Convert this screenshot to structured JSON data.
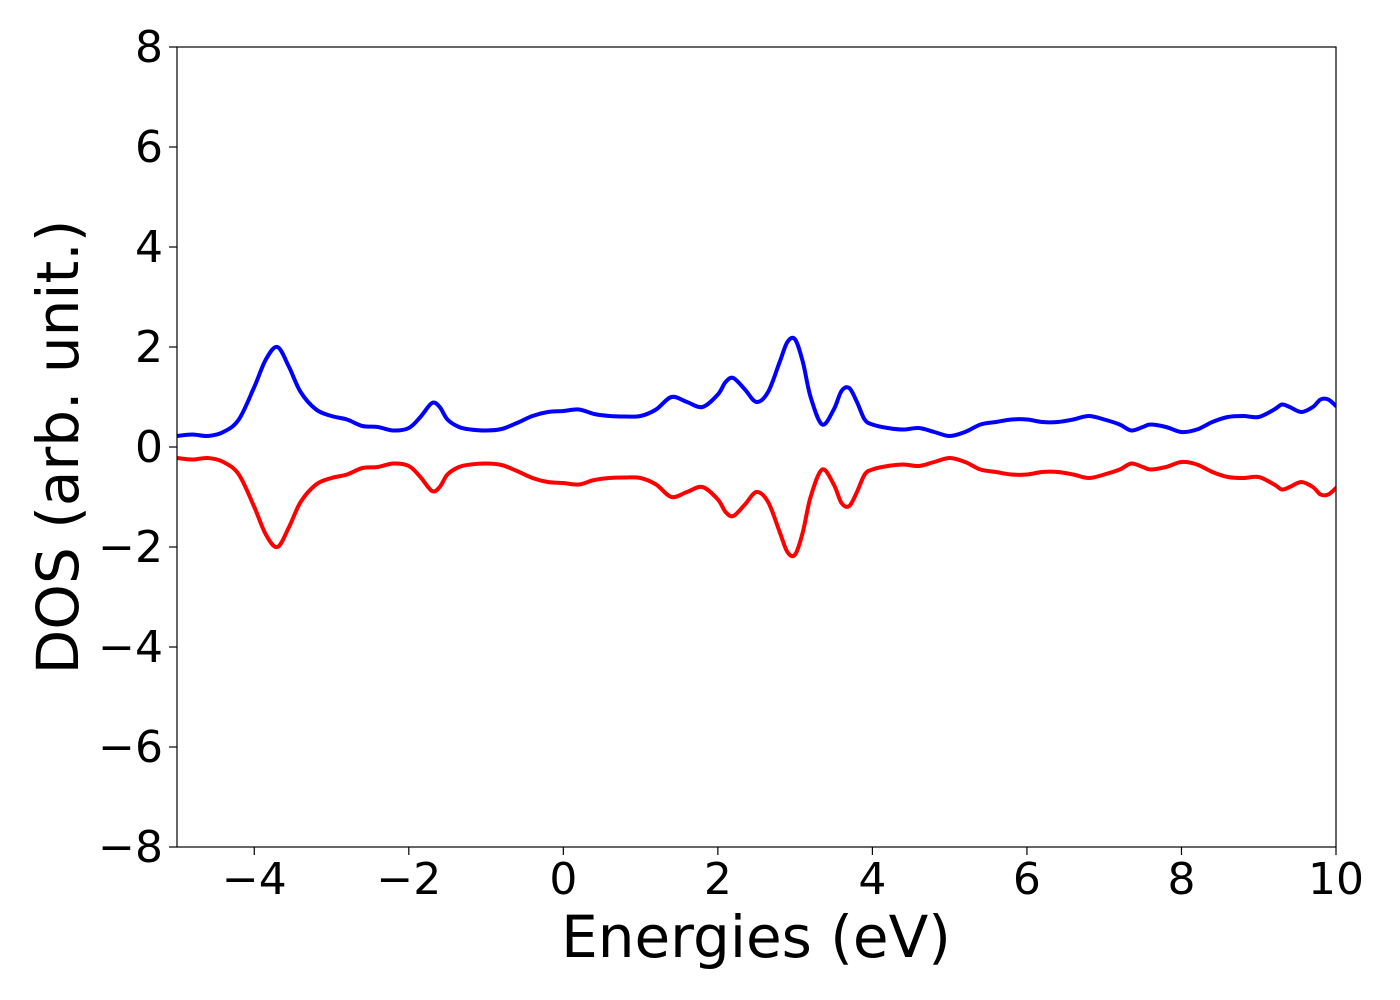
{
  "chart_data": {
    "type": "line",
    "title": "",
    "xlabel": "Energies (eV)",
    "ylabel": "DOS (arb. unit.)",
    "xlim": [
      -5,
      10
    ],
    "ylim": [
      -8,
      8
    ],
    "grid": false,
    "legend": "none",
    "x_ticks": [
      -4,
      -2,
      0,
      2,
      4,
      6,
      8,
      10
    ],
    "x_tick_labels": [
      "−4",
      "−2",
      "0",
      "2",
      "4",
      "6",
      "8",
      "10"
    ],
    "y_ticks": [
      -8,
      -6,
      -4,
      -2,
      0,
      2,
      4,
      6,
      8
    ],
    "y_tick_labels": [
      "−8",
      "−6",
      "−4",
      "−2",
      "0",
      "2",
      "4",
      "6",
      "8"
    ],
    "series": [
      {
        "color": "#0000ff",
        "x": [
          -5.0,
          -4.8,
          -4.6,
          -4.4,
          -4.2,
          -4.0,
          -3.85,
          -3.7,
          -3.55,
          -3.4,
          -3.2,
          -3.0,
          -2.8,
          -2.6,
          -2.4,
          -2.2,
          -2.0,
          -1.85,
          -1.7,
          -1.6,
          -1.5,
          -1.35,
          -1.2,
          -1.0,
          -0.8,
          -0.6,
          -0.4,
          -0.2,
          0.0,
          0.2,
          0.4,
          0.6,
          0.8,
          1.0,
          1.2,
          1.4,
          1.6,
          1.8,
          2.0,
          2.1,
          2.2,
          2.35,
          2.5,
          2.65,
          2.8,
          2.9,
          3.0,
          3.1,
          3.2,
          3.35,
          3.5,
          3.6,
          3.7,
          3.8,
          3.9,
          4.0,
          4.2,
          4.4,
          4.6,
          4.8,
          5.0,
          5.2,
          5.4,
          5.6,
          5.8,
          6.0,
          6.2,
          6.4,
          6.6,
          6.8,
          7.0,
          7.2,
          7.35,
          7.5,
          7.6,
          7.8,
          8.0,
          8.2,
          8.4,
          8.6,
          8.8,
          9.0,
          9.2,
          9.3,
          9.4,
          9.55,
          9.7,
          9.8,
          9.9,
          10.0
        ],
        "y": [
          0.22,
          0.25,
          0.22,
          0.3,
          0.55,
          1.2,
          1.75,
          2.0,
          1.6,
          1.1,
          0.75,
          0.62,
          0.55,
          0.42,
          0.4,
          0.33,
          0.38,
          0.6,
          0.88,
          0.8,
          0.55,
          0.4,
          0.35,
          0.33,
          0.36,
          0.48,
          0.62,
          0.7,
          0.72,
          0.75,
          0.66,
          0.62,
          0.61,
          0.62,
          0.75,
          1.0,
          0.9,
          0.8,
          1.05,
          1.3,
          1.38,
          1.15,
          0.9,
          1.1,
          1.7,
          2.1,
          2.15,
          1.7,
          1.0,
          0.45,
          0.75,
          1.12,
          1.18,
          0.9,
          0.55,
          0.45,
          0.38,
          0.35,
          0.38,
          0.3,
          0.22,
          0.3,
          0.45,
          0.5,
          0.55,
          0.55,
          0.5,
          0.5,
          0.55,
          0.62,
          0.55,
          0.45,
          0.33,
          0.4,
          0.45,
          0.4,
          0.3,
          0.35,
          0.5,
          0.6,
          0.62,
          0.6,
          0.75,
          0.85,
          0.8,
          0.7,
          0.8,
          0.95,
          0.95,
          0.82
        ]
      },
      {
        "color": "#ff0000",
        "x": [
          -5.0,
          -4.8,
          -4.6,
          -4.4,
          -4.2,
          -4.0,
          -3.85,
          -3.7,
          -3.55,
          -3.4,
          -3.2,
          -3.0,
          -2.8,
          -2.6,
          -2.4,
          -2.2,
          -2.0,
          -1.85,
          -1.7,
          -1.6,
          -1.5,
          -1.35,
          -1.2,
          -1.0,
          -0.8,
          -0.6,
          -0.4,
          -0.2,
          0.0,
          0.2,
          0.4,
          0.6,
          0.8,
          1.0,
          1.2,
          1.4,
          1.6,
          1.8,
          2.0,
          2.1,
          2.2,
          2.35,
          2.5,
          2.65,
          2.8,
          2.9,
          3.0,
          3.1,
          3.2,
          3.35,
          3.5,
          3.6,
          3.7,
          3.8,
          3.9,
          4.0,
          4.2,
          4.4,
          4.6,
          4.8,
          5.0,
          5.2,
          5.4,
          5.6,
          5.8,
          6.0,
          6.2,
          6.4,
          6.6,
          6.8,
          7.0,
          7.2,
          7.35,
          7.5,
          7.6,
          7.8,
          8.0,
          8.2,
          8.4,
          8.6,
          8.8,
          9.0,
          9.2,
          9.3,
          9.4,
          9.55,
          9.7,
          9.8,
          9.9,
          10.0
        ],
        "y": [
          -0.22,
          -0.25,
          -0.22,
          -0.3,
          -0.55,
          -1.2,
          -1.75,
          -2.0,
          -1.6,
          -1.1,
          -0.75,
          -0.62,
          -0.55,
          -0.42,
          -0.4,
          -0.33,
          -0.38,
          -0.6,
          -0.88,
          -0.8,
          -0.55,
          -0.4,
          -0.35,
          -0.33,
          -0.36,
          -0.48,
          -0.62,
          -0.7,
          -0.72,
          -0.75,
          -0.66,
          -0.62,
          -0.61,
          -0.62,
          -0.75,
          -1.0,
          -0.9,
          -0.8,
          -1.05,
          -1.3,
          -1.38,
          -1.15,
          -0.9,
          -1.1,
          -1.7,
          -2.1,
          -2.15,
          -1.7,
          -1.0,
          -0.45,
          -0.75,
          -1.12,
          -1.18,
          -0.9,
          -0.55,
          -0.45,
          -0.38,
          -0.35,
          -0.38,
          -0.3,
          -0.22,
          -0.3,
          -0.45,
          -0.5,
          -0.55,
          -0.55,
          -0.5,
          -0.5,
          -0.55,
          -0.62,
          -0.55,
          -0.45,
          -0.33,
          -0.4,
          -0.45,
          -0.4,
          -0.3,
          -0.35,
          -0.5,
          -0.6,
          -0.62,
          -0.6,
          -0.75,
          -0.85,
          -0.8,
          -0.7,
          -0.8,
          -0.95,
          -0.95,
          -0.82
        ]
      }
    ]
  }
}
